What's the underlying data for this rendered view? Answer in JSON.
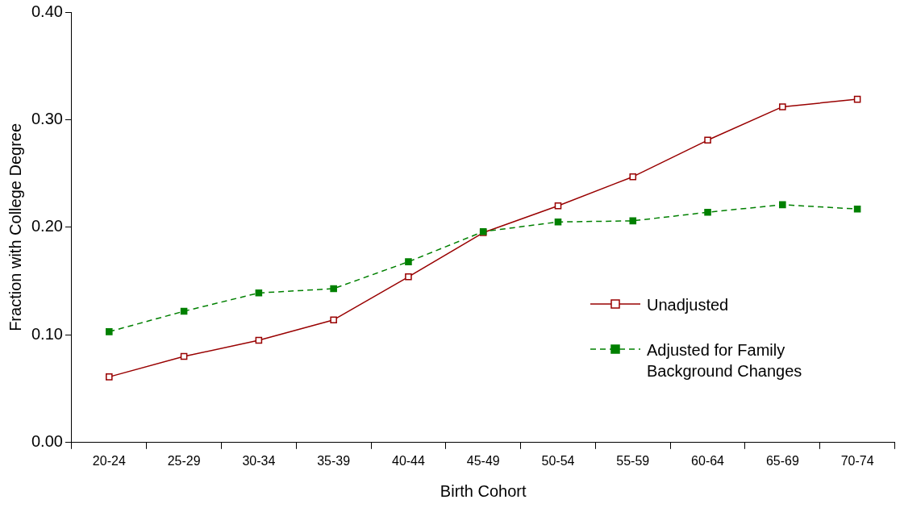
{
  "chart_data": {
    "type": "line",
    "xlabel": "Birth Cohort",
    "ylabel": "Fraction with College Degree",
    "categories": [
      "20-24",
      "25-29",
      "30-34",
      "35-39",
      "40-44",
      "45-49",
      "50-54",
      "55-59",
      "60-64",
      "65-69",
      "70-74"
    ],
    "series": [
      {
        "name": "Unadjusted",
        "color": "#990000",
        "line_style": "solid",
        "values": [
          0.061,
          0.08,
          0.095,
          0.114,
          0.154,
          0.195,
          0.22,
          0.247,
          0.281,
          0.312,
          0.319
        ]
      },
      {
        "name": "Adjusted for Family Background Changes",
        "color": "#008000",
        "line_style": "dashed",
        "values": [
          0.103,
          0.122,
          0.139,
          0.143,
          0.168,
          0.196,
          0.205,
          0.206,
          0.214,
          0.221,
          0.217
        ]
      }
    ],
    "ylim": [
      0,
      0.4
    ],
    "yticks": [
      {
        "value": 0,
        "label": "0.00"
      },
      {
        "value": 0.1,
        "label": "0.10"
      },
      {
        "value": 0.2,
        "label": "0.20"
      },
      {
        "value": 0.3,
        "label": "0.30"
      },
      {
        "value": 0.4,
        "label": "0.40"
      }
    ],
    "grid": false,
    "legend": "center right",
    "marker": "square"
  }
}
